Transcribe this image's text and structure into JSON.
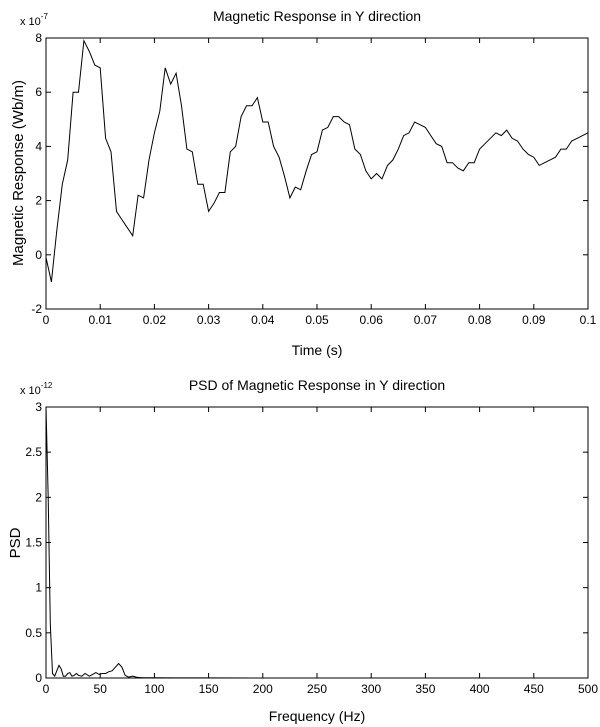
{
  "chart_data": [
    {
      "type": "line",
      "title": "Magnetic Response in Y direction",
      "xlabel": "Time (s)",
      "ylabel": "Magnetic Response (Wb/m)",
      "y_multiplier": {
        "base": "x 10",
        "exponent": "-7"
      },
      "xlim": [
        0,
        0.1
      ],
      "ylim": [
        -2,
        8
      ],
      "y_scale_factor": 1e-07,
      "xticks": [
        "0",
        "0.01",
        "0.02",
        "0.03",
        "0.04",
        "0.05",
        "0.06",
        "0.07",
        "0.08",
        "0.09",
        "0.1"
      ],
      "xtick_values": [
        0,
        0.01,
        0.02,
        0.03,
        0.04,
        0.05,
        0.06,
        0.07,
        0.08,
        0.09,
        0.1
      ],
      "yticks": [
        "-2",
        "0",
        "2",
        "4",
        "6",
        "8"
      ],
      "ytick_values": [
        -2,
        0,
        2,
        4,
        6,
        8
      ],
      "grid": false,
      "series": [
        {
          "x": [
            0,
            0.001,
            0.002,
            0.003,
            0.004,
            0.005,
            0.006,
            0.007,
            0.008,
            0.009,
            0.01,
            0.011,
            0.012,
            0.013,
            0.014,
            0.015,
            0.016,
            0.017,
            0.018,
            0.019,
            0.02,
            0.021,
            0.022,
            0.023,
            0.024,
            0.025,
            0.026,
            0.027,
            0.028,
            0.029,
            0.03,
            0.031,
            0.032,
            0.033,
            0.034,
            0.035,
            0.036,
            0.037,
            0.038,
            0.039,
            0.04,
            0.041,
            0.042,
            0.043,
            0.044,
            0.045,
            0.046,
            0.047,
            0.048,
            0.049,
            0.05,
            0.051,
            0.052,
            0.053,
            0.054,
            0.055,
            0.056,
            0.057,
            0.058,
            0.059,
            0.06,
            0.061,
            0.062,
            0.063,
            0.064,
            0.065,
            0.066,
            0.067,
            0.068,
            0.069,
            0.07,
            0.071,
            0.072,
            0.073,
            0.074,
            0.075,
            0.076,
            0.077,
            0.078,
            0.079,
            0.08,
            0.081,
            0.082,
            0.083,
            0.084,
            0.085,
            0.086,
            0.087,
            0.088,
            0.089,
            0.09,
            0.091,
            0.092,
            0.093,
            0.094,
            0.095,
            0.096,
            0.097,
            0.098,
            0.099,
            0.1
          ],
          "values": [
            -0.1,
            -1.0,
            0.9,
            2.6,
            3.5,
            6.0,
            6.0,
            7.9,
            7.5,
            7.0,
            6.9,
            4.3,
            3.8,
            1.6,
            1.3,
            1.0,
            0.7,
            2.2,
            2.1,
            3.5,
            4.5,
            5.3,
            6.9,
            6.3,
            6.7,
            5.5,
            3.9,
            3.8,
            2.6,
            2.6,
            1.6,
            1.9,
            2.3,
            2.3,
            3.8,
            4.0,
            5.1,
            5.5,
            5.5,
            5.8,
            4.9,
            4.9,
            4.0,
            3.6,
            2.9,
            2.1,
            2.5,
            2.4,
            3.1,
            3.7,
            3.8,
            4.6,
            4.7,
            5.1,
            5.1,
            4.9,
            4.8,
            3.9,
            3.7,
            3.1,
            2.8,
            3.0,
            2.8,
            3.3,
            3.5,
            3.9,
            4.4,
            4.5,
            4.9,
            4.8,
            4.7,
            4.4,
            4.1,
            4.0,
            3.4,
            3.4,
            3.2,
            3.1,
            3.4,
            3.4,
            3.9,
            4.1,
            4.3,
            4.5,
            4.4,
            4.6,
            4.3,
            4.2,
            3.9,
            3.7,
            3.6,
            3.3,
            3.4,
            3.5,
            3.6,
            3.9,
            3.9,
            4.2,
            4.3,
            4.4,
            4.5
          ]
        }
      ]
    },
    {
      "type": "line",
      "title": "PSD of Magnetic Response in Y direction",
      "xlabel": "Frequency (Hz)",
      "ylabel": "PSD",
      "y_multiplier": {
        "base": "x 10",
        "exponent": "-12"
      },
      "xlim": [
        0,
        500
      ],
      "ylim": [
        0,
        3
      ],
      "y_scale_factor": 1e-12,
      "xticks": [
        "0",
        "50",
        "100",
        "150",
        "200",
        "250",
        "300",
        "350",
        "400",
        "450",
        "500"
      ],
      "xtick_values": [
        0,
        50,
        100,
        150,
        200,
        250,
        300,
        350,
        400,
        450,
        500
      ],
      "yticks": [
        "0",
        "0.5",
        "1",
        "1.5",
        "2",
        "2.5",
        "3"
      ],
      "ytick_values": [
        0,
        0.5,
        1,
        1.5,
        2,
        2.5,
        3
      ],
      "grid": false,
      "series": [
        {
          "x": [
            0,
            2,
            4,
            6,
            8,
            10,
            12,
            14,
            16,
            18,
            20,
            22,
            24,
            26,
            28,
            30,
            33,
            36,
            40,
            43,
            46,
            49,
            52,
            55,
            58,
            61,
            64,
            67,
            70,
            73,
            76,
            80,
            83,
            86,
            90,
            100,
            120,
            150,
            200,
            300,
            400,
            500
          ],
          "values": [
            3.0,
            2.0,
            0.6,
            0.05,
            0.02,
            0.08,
            0.14,
            0.1,
            0.02,
            0.02,
            0.05,
            0.06,
            0.02,
            0.03,
            0.05,
            0.03,
            0.02,
            0.05,
            0.02,
            0.04,
            0.06,
            0.04,
            0.05,
            0.05,
            0.07,
            0.08,
            0.12,
            0.16,
            0.12,
            0.03,
            0.01,
            0.02,
            0.01,
            0.005,
            0.003,
            0.002,
            0.001,
            0.001,
            0.0,
            0.0,
            0.0,
            0.0
          ]
        }
      ]
    }
  ]
}
